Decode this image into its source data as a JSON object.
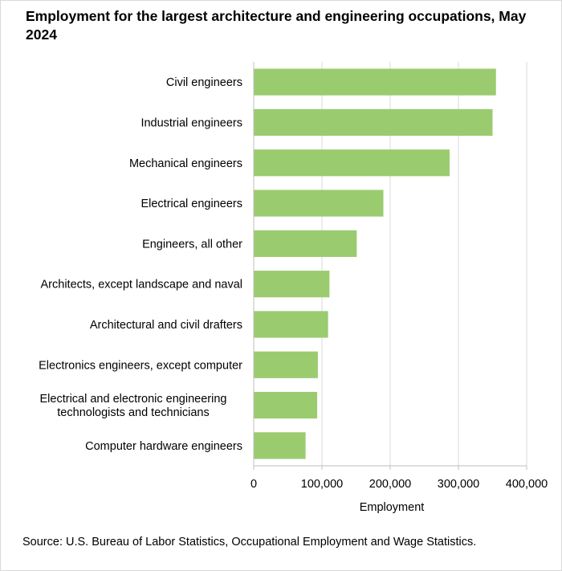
{
  "chart_data": {
    "type": "bar",
    "orientation": "horizontal",
    "title": "Employment for the largest architecture and engineering occupations, May 2024",
    "xlabel": "Employment",
    "ylabel": "",
    "categories": [
      "Civil engineers",
      "Industrial engineers",
      "Mechanical engineers",
      "Electrical engineers",
      "Engineers, all other",
      "Architects, except landscape and naval",
      "Architectural and civil drafters",
      "Electronics engineers, except computer",
      "Electrical and electronic engineering technologists and technicians",
      "Computer hardware engineers"
    ],
    "category_lines": [
      [
        "Civil engineers"
      ],
      [
        "Industrial engineers"
      ],
      [
        "Mechanical engineers"
      ],
      [
        "Electrical engineers"
      ],
      [
        "Engineers, all other"
      ],
      [
        "Architects, except landscape and naval"
      ],
      [
        "Architectural and civil drafters"
      ],
      [
        "Electronics engineers, except computer"
      ],
      [
        "Electrical and electronic engineering",
        "technologists and technicians"
      ],
      [
        "Computer hardware engineers"
      ]
    ],
    "values": [
      355000,
      350000,
      287000,
      190000,
      151000,
      111000,
      109000,
      94000,
      93000,
      76000
    ],
    "xlim": [
      0,
      400000
    ],
    "xticks": [
      0,
      100000,
      200000,
      300000,
      400000
    ],
    "xtick_labels": [
      "0",
      "100,000",
      "200,000",
      "300,000",
      "400,000"
    ],
    "grid": true,
    "bar_color": "#9bcb6f",
    "grid_color": "#d9d9d9"
  },
  "footer": {
    "source": "Source: U.S. Bureau of Labor Statistics, Occupational Employment  and Wage Statistics."
  }
}
